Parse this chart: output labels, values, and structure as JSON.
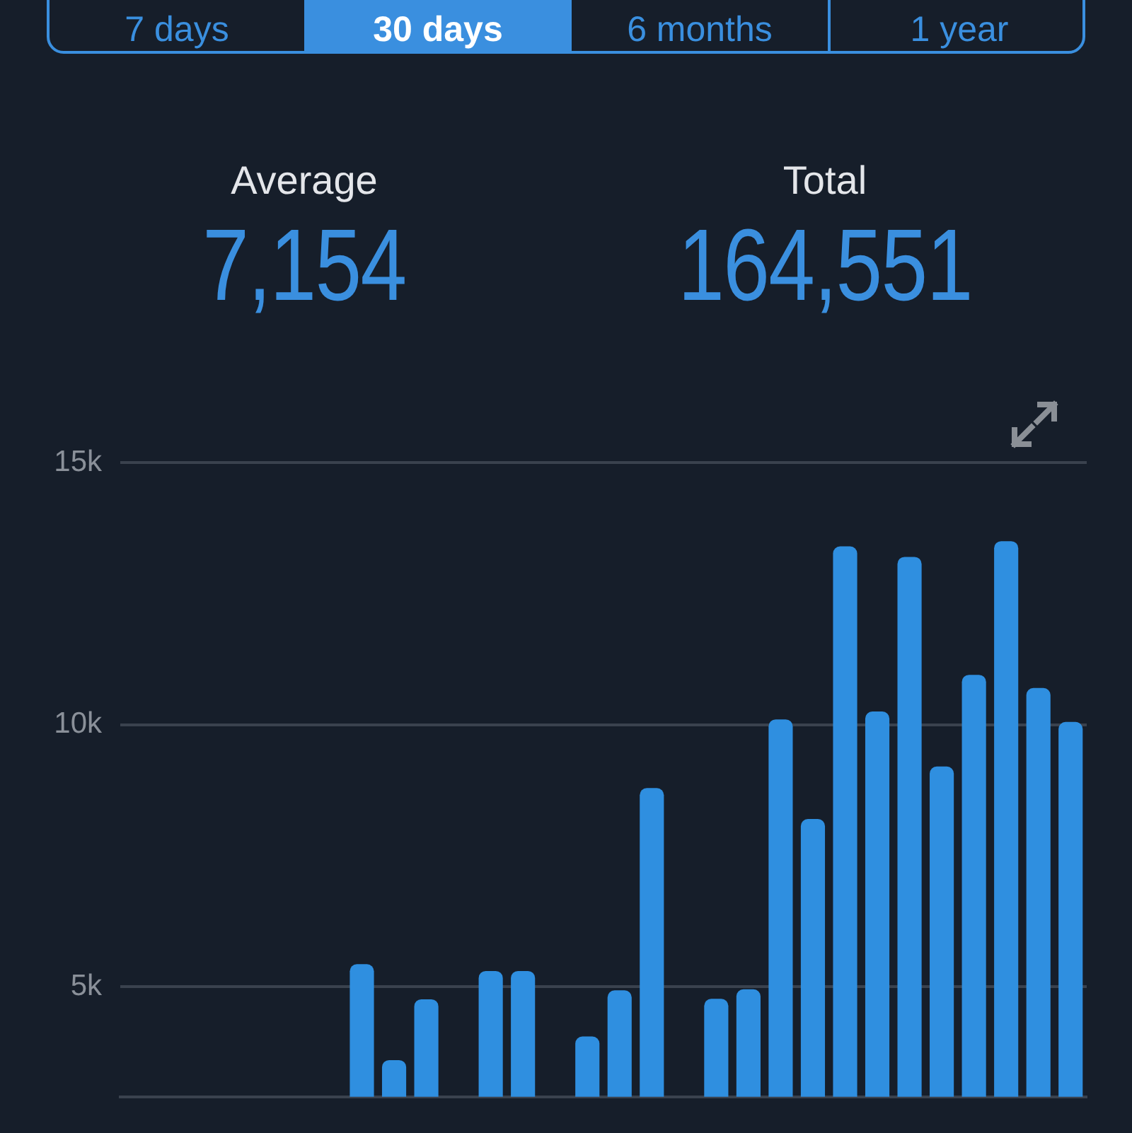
{
  "chart_data": {
    "type": "bar",
    "annotations": [
      "7 days",
      "30 days",
      "6 months",
      "1 year",
      "Average",
      "7,154",
      "Total",
      "164,551"
    ],
    "categories": [
      null,
      null,
      null,
      null,
      null,
      null,
      null,
      null,
      null,
      null,
      null,
      null,
      null,
      null,
      null,
      null,
      null,
      null,
      null,
      null,
      null,
      null,
      null,
      null,
      null,
      null,
      null,
      null,
      null,
      null
    ],
    "values": [
      null,
      null,
      null,
      null,
      null,
      null,
      null,
      5430,
      3600,
      4760,
      null,
      5300,
      5300,
      null,
      4050,
      4930,
      8790,
      null,
      4770,
      4950,
      10100,
      8200,
      13400,
      10250,
      13200,
      9200,
      10950,
      13500,
      10700,
      10050
    ],
    "color": "#2f8fe0",
    "ylim": [
      2900,
      15000
    ],
    "yticks": [
      {
        "value": 5000,
        "label": "5k"
      },
      {
        "value": 10000,
        "label": "10k"
      },
      {
        "value": 15000,
        "label": "15k"
      }
    ],
    "grid": "y",
    "tick_labels": "y"
  }
}
